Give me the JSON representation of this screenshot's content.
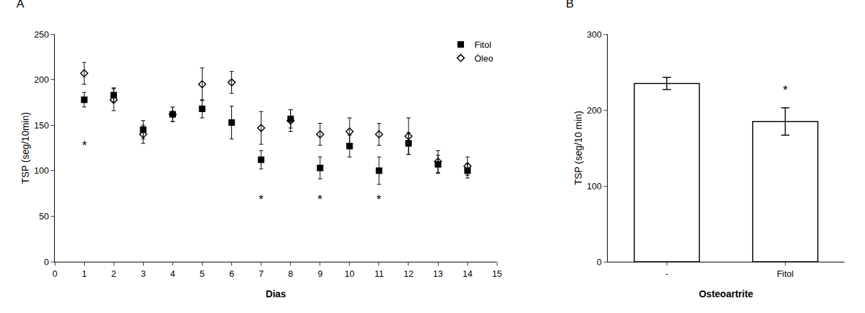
{
  "chart_data": [
    {
      "type": "scatter",
      "title": "A",
      "xlabel": "Dias",
      "ylabel": "TSP (seg/10min)",
      "x": [
        1,
        2,
        3,
        4,
        5,
        6,
        7,
        8,
        9,
        10,
        11,
        12,
        13,
        14
      ],
      "series": [
        {
          "name": "Óleo",
          "color": "black",
          "marker": "diamond-open",
          "values": [
            207,
            178,
            140,
            162,
            195,
            197,
            147,
            155,
            140,
            143,
            140,
            138,
            110,
            105
          ],
          "errors": [
            12,
            12,
            10,
            8,
            18,
            12,
            18,
            12,
            12,
            15,
            12,
            20,
            12,
            10
          ]
        },
        {
          "name": "Fitol",
          "color": "black",
          "marker": "square",
          "values": [
            178,
            183,
            145,
            162,
            168,
            153,
            112,
            157,
            103,
            127,
            100,
            130,
            107,
            100
          ],
          "errors": [
            8,
            8,
            10,
            8,
            10,
            18,
            10,
            10,
            12,
            12,
            15,
            12,
            10,
            8
          ]
        }
      ],
      "annotations": [
        {
          "text": "*",
          "x": 1,
          "y": 128
        },
        {
          "text": "*",
          "x": 7,
          "y": 68
        },
        {
          "text": "*",
          "x": 9,
          "y": 68
        },
        {
          "text": "*",
          "x": 11,
          "y": 68
        }
      ],
      "xlim": [
        0,
        15
      ],
      "xticks": [
        0,
        1,
        2,
        3,
        4,
        5,
        6,
        7,
        8,
        9,
        10,
        11,
        12,
        13,
        14,
        15
      ],
      "ylim": [
        0,
        250
      ],
      "yticks": [
        0,
        50,
        100,
        150,
        200,
        250
      ],
      "legend": "upper right",
      "grid": false
    },
    {
      "type": "bar",
      "title": "B",
      "xlabel": "Osteoartrite",
      "ylabel": "TSP (seg/10 min)",
      "categories": [
        "-",
        "Fitol"
      ],
      "values": [
        235,
        185
      ],
      "errors": [
        8,
        18
      ],
      "color": "white",
      "annotations": [
        {
          "text": "*",
          "x": 1,
          "y": 215
        }
      ],
      "ylim": [
        0,
        300
      ],
      "yticks": [
        0,
        100,
        200,
        300
      ],
      "grid": false
    }
  ]
}
